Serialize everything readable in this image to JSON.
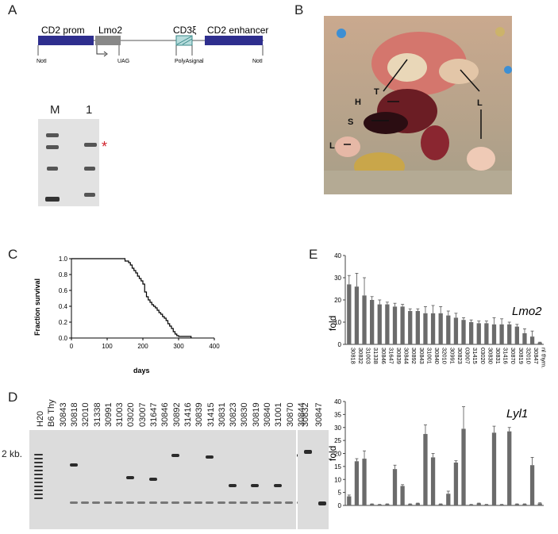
{
  "panels": {
    "A": "A",
    "B": "B",
    "C": "C",
    "D": "D",
    "E": "E"
  },
  "construct": {
    "cd2_prom": "CD2 prom",
    "lmo2": "Lmo2",
    "cd3": "CD3ξ",
    "cd2_enh": "CD2 enhancer",
    "notl_left": "NotI",
    "notl_right": "NotI",
    "uag": "UAG",
    "polya": "PolyAsignal"
  },
  "southern": {
    "lane_m": "M",
    "lane_1": "1",
    "asterisk": "*"
  },
  "photo": {
    "labels": {
      "T": "T",
      "H": "H",
      "S": "S",
      "L1": "L",
      "L2": "L"
    }
  },
  "gel": {
    "size_label": "2 kb.",
    "lanes": [
      "H20",
      "B6 Thy",
      "30843",
      "30818",
      "32010",
      "31338",
      "30991",
      "31003",
      "03020",
      "03007",
      "31647",
      "30846",
      "30892",
      "31416",
      "30839",
      "31415",
      "30831",
      "30823",
      "30830",
      "30819",
      "30840",
      "31001",
      "30870",
      "30844"
    ],
    "lanes_right": [
      "30832",
      "30847"
    ]
  },
  "chart_data": [
    {
      "type": "line",
      "title": "",
      "xlabel": "days",
      "ylabel": "Fraction survival",
      "xlim": [
        0,
        400
      ],
      "ylim": [
        0,
        1.0
      ],
      "xticks": [
        0,
        100,
        200,
        300,
        400
      ],
      "yticks": [
        0.0,
        0.2,
        0.4,
        0.6,
        0.8,
        1.0
      ],
      "x": [
        0,
        140,
        150,
        160,
        165,
        170,
        175,
        180,
        185,
        190,
        195,
        200,
        205,
        210,
        215,
        220,
        225,
        230,
        235,
        240,
        245,
        250,
        255,
        260,
        265,
        270,
        275,
        280,
        285,
        290,
        295,
        300,
        335
      ],
      "y": [
        1.0,
        1.0,
        0.97,
        0.95,
        0.92,
        0.88,
        0.85,
        0.82,
        0.78,
        0.75,
        0.72,
        0.68,
        0.58,
        0.52,
        0.48,
        0.45,
        0.42,
        0.4,
        0.38,
        0.35,
        0.32,
        0.3,
        0.27,
        0.25,
        0.22,
        0.18,
        0.15,
        0.12,
        0.08,
        0.05,
        0.03,
        0.02,
        0.0
      ]
    },
    {
      "type": "bar",
      "title": "Lmo2",
      "ylabel": "fold",
      "ylim": [
        0,
        40
      ],
      "yticks": [
        0,
        10,
        20,
        30,
        40
      ],
      "categories": [
        "30818",
        "30832",
        "31003",
        "31338",
        "30846",
        "31647",
        "30839",
        "30844",
        "30892",
        "30843",
        "31001",
        "30840",
        "32010",
        "30991",
        "30823",
        "03007",
        "31415",
        "03020",
        "30830",
        "30831",
        "31416",
        "30870",
        "30819",
        "32010",
        "30847",
        "nl thym."
      ],
      "values": [
        27,
        26,
        22,
        20,
        18,
        18,
        17,
        17,
        15,
        15,
        14,
        14,
        14,
        13,
        12,
        11,
        10,
        9.5,
        9.5,
        9,
        9,
        9,
        8,
        5,
        3.5,
        0.8
      ],
      "errors": [
        4,
        6,
        8,
        1.5,
        2,
        1,
        1.5,
        1,
        1,
        1,
        3,
        3.5,
        3,
        2,
        2,
        1,
        1,
        1,
        1,
        3,
        2.5,
        1,
        1,
        2,
        2.5,
        0.2
      ]
    },
    {
      "type": "bar",
      "title": "Lyl1",
      "ylabel": "fold",
      "ylim": [
        0,
        40
      ],
      "yticks": [
        0,
        5,
        10,
        15,
        20,
        25,
        30,
        35,
        40
      ],
      "values": [
        3.5,
        17,
        18,
        0.5,
        0.3,
        0.5,
        14,
        7.5,
        0.5,
        0.8,
        27.5,
        18.5,
        0.5,
        4.5,
        16.5,
        29.5,
        0.3,
        0.8,
        0.3,
        28,
        0.3,
        28.5,
        0.5,
        0.5,
        15.5,
        0.8
      ],
      "errors": [
        0.5,
        1,
        3,
        0.1,
        0.1,
        0.1,
        1.5,
        0.5,
        0.1,
        0.1,
        3.5,
        1.5,
        0.1,
        1,
        0.7,
        8.5,
        0.1,
        0.1,
        0.1,
        2.5,
        0.1,
        1.5,
        0.1,
        0.1,
        3,
        0.2
      ]
    }
  ]
}
